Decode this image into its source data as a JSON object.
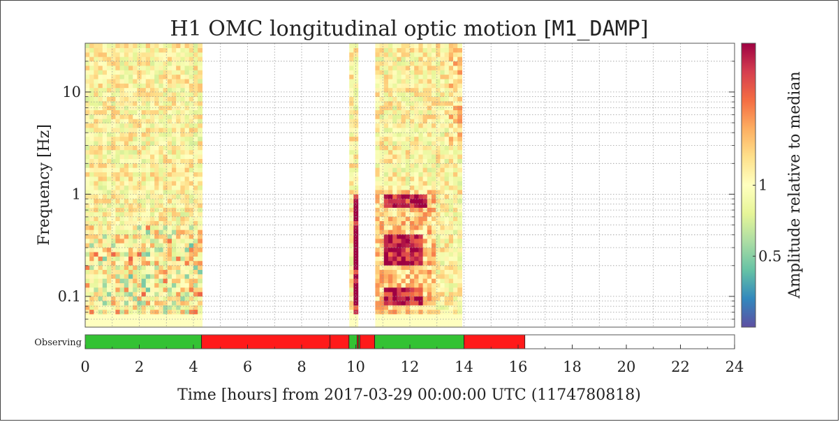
{
  "chart_data": {
    "type": "heatmap",
    "title_prefix": "H1 OMC longitudinal optic motion [",
    "title_channel": "M1_DAMP",
    "title_suffix": "]",
    "xlabel": "Time [hours] from 2017-03-29 00:00:00 UTC (1174780818)",
    "ylabel": "Frequency [Hz]",
    "colorbar_label": "Amplitude relative to median",
    "x_range": [
      0,
      24
    ],
    "y_range": [
      0.05,
      30
    ],
    "y_scale": "log",
    "x_ticks": [
      0,
      2,
      4,
      6,
      8,
      10,
      12,
      14,
      16,
      18,
      20,
      22,
      24
    ],
    "x_tick_labels": [
      "0",
      "2",
      "4",
      "6",
      "8",
      "10",
      "12",
      "14",
      "16",
      "18",
      "20",
      "22",
      "24"
    ],
    "y_ticks": [
      0.1,
      1,
      10
    ],
    "y_tick_labels": [
      "0.1",
      "1",
      "10"
    ],
    "colorbar_range": [
      0.25,
      4
    ],
    "colorbar_scale": "log",
    "colorbar_ticks": [
      0.5,
      1
    ],
    "colorbar_tick_labels": [
      "0.5",
      "1"
    ],
    "colormap": [
      "#5e4fa2",
      "#3288bd",
      "#66c2a5",
      "#abdda4",
      "#e6f598",
      "#ffffbf",
      "#fee08b",
      "#fdae61",
      "#f46d43",
      "#d53e4f",
      "#9e0142"
    ],
    "grid": true,
    "data_segments_hours": [
      [
        0,
        4.35
      ],
      [
        9.8,
        10.15
      ],
      [
        10.7,
        14.0
      ]
    ],
    "high_amplitude_features": [
      {
        "t_start": 9.9,
        "t_end": 10.15,
        "f_low": 0.07,
        "f_high": 1.0
      },
      {
        "t_start": 11.0,
        "t_end": 12.6,
        "f_low": 0.75,
        "f_high": 1.0
      },
      {
        "t_start": 11.0,
        "t_end": 12.5,
        "f_low": 0.2,
        "f_high": 0.4
      },
      {
        "t_start": 11.0,
        "t_end": 12.4,
        "f_low": 0.08,
        "f_high": 0.12
      }
    ],
    "state_bar": {
      "label": "Observing",
      "on_color": "#33c233",
      "off_color": "#ff1a1a",
      "segments": [
        {
          "start": 0.0,
          "end": 4.3,
          "state": "on"
        },
        {
          "start": 4.3,
          "end": 9.05,
          "state": "off"
        },
        {
          "start": 9.05,
          "end": 9.75,
          "state": "off"
        },
        {
          "start": 9.75,
          "end": 10.05,
          "state": "on"
        },
        {
          "start": 10.05,
          "end": 10.1,
          "state": "off"
        },
        {
          "start": 10.1,
          "end": 10.15,
          "state": "on"
        },
        {
          "start": 10.15,
          "end": 10.7,
          "state": "off"
        },
        {
          "start": 10.7,
          "end": 14.0,
          "state": "on"
        },
        {
          "start": 14.0,
          "end": 16.25,
          "state": "off"
        }
      ]
    }
  }
}
